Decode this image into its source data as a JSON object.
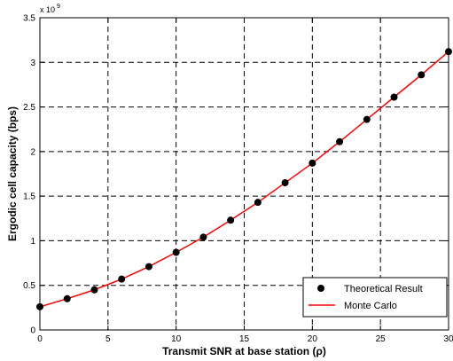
{
  "chart_data": {
    "type": "line",
    "xlabel": "Transmit SNR at base station (ρ)",
    "ylabel": "Ergodic cell capacity (bps)",
    "y_scale_label": "x 10",
    "y_scale_exponent": "9",
    "xlim": [
      0,
      30
    ],
    "ylim": [
      0,
      3.5
    ],
    "x_ticks": [
      0,
      5,
      10,
      15,
      20,
      25,
      30
    ],
    "x_tick_labels": [
      "0",
      "5",
      "10",
      "15",
      "20",
      "25",
      "30"
    ],
    "y_ticks": [
      0,
      0.5,
      1,
      1.5,
      2,
      2.5,
      3,
      3.5
    ],
    "y_tick_labels": [
      "0",
      "0.5",
      "1",
      "1.5",
      "2",
      "2.5",
      "3",
      "3.5"
    ],
    "grid": true,
    "legend_position": "bottom-right",
    "series": [
      {
        "name": "Theoretical Result",
        "style": "markers",
        "color": "#000000",
        "x": [
          0,
          2,
          4,
          6,
          8,
          10,
          12,
          14,
          16,
          18,
          20,
          22,
          24,
          26,
          28,
          30
        ],
        "y": [
          0.26,
          0.35,
          0.45,
          0.57,
          0.71,
          0.87,
          1.04,
          1.23,
          1.43,
          1.65,
          1.87,
          2.11,
          2.36,
          2.61,
          2.86,
          3.12
        ]
      },
      {
        "name": "Monte Carlo",
        "style": "line",
        "color": "#ff0000",
        "x": [
          0,
          2,
          4,
          6,
          8,
          10,
          12,
          14,
          16,
          18,
          20,
          22,
          24,
          26,
          28,
          30
        ],
        "y": [
          0.26,
          0.35,
          0.45,
          0.57,
          0.71,
          0.87,
          1.04,
          1.23,
          1.43,
          1.65,
          1.87,
          2.11,
          2.36,
          2.61,
          2.86,
          3.12
        ]
      }
    ]
  }
}
